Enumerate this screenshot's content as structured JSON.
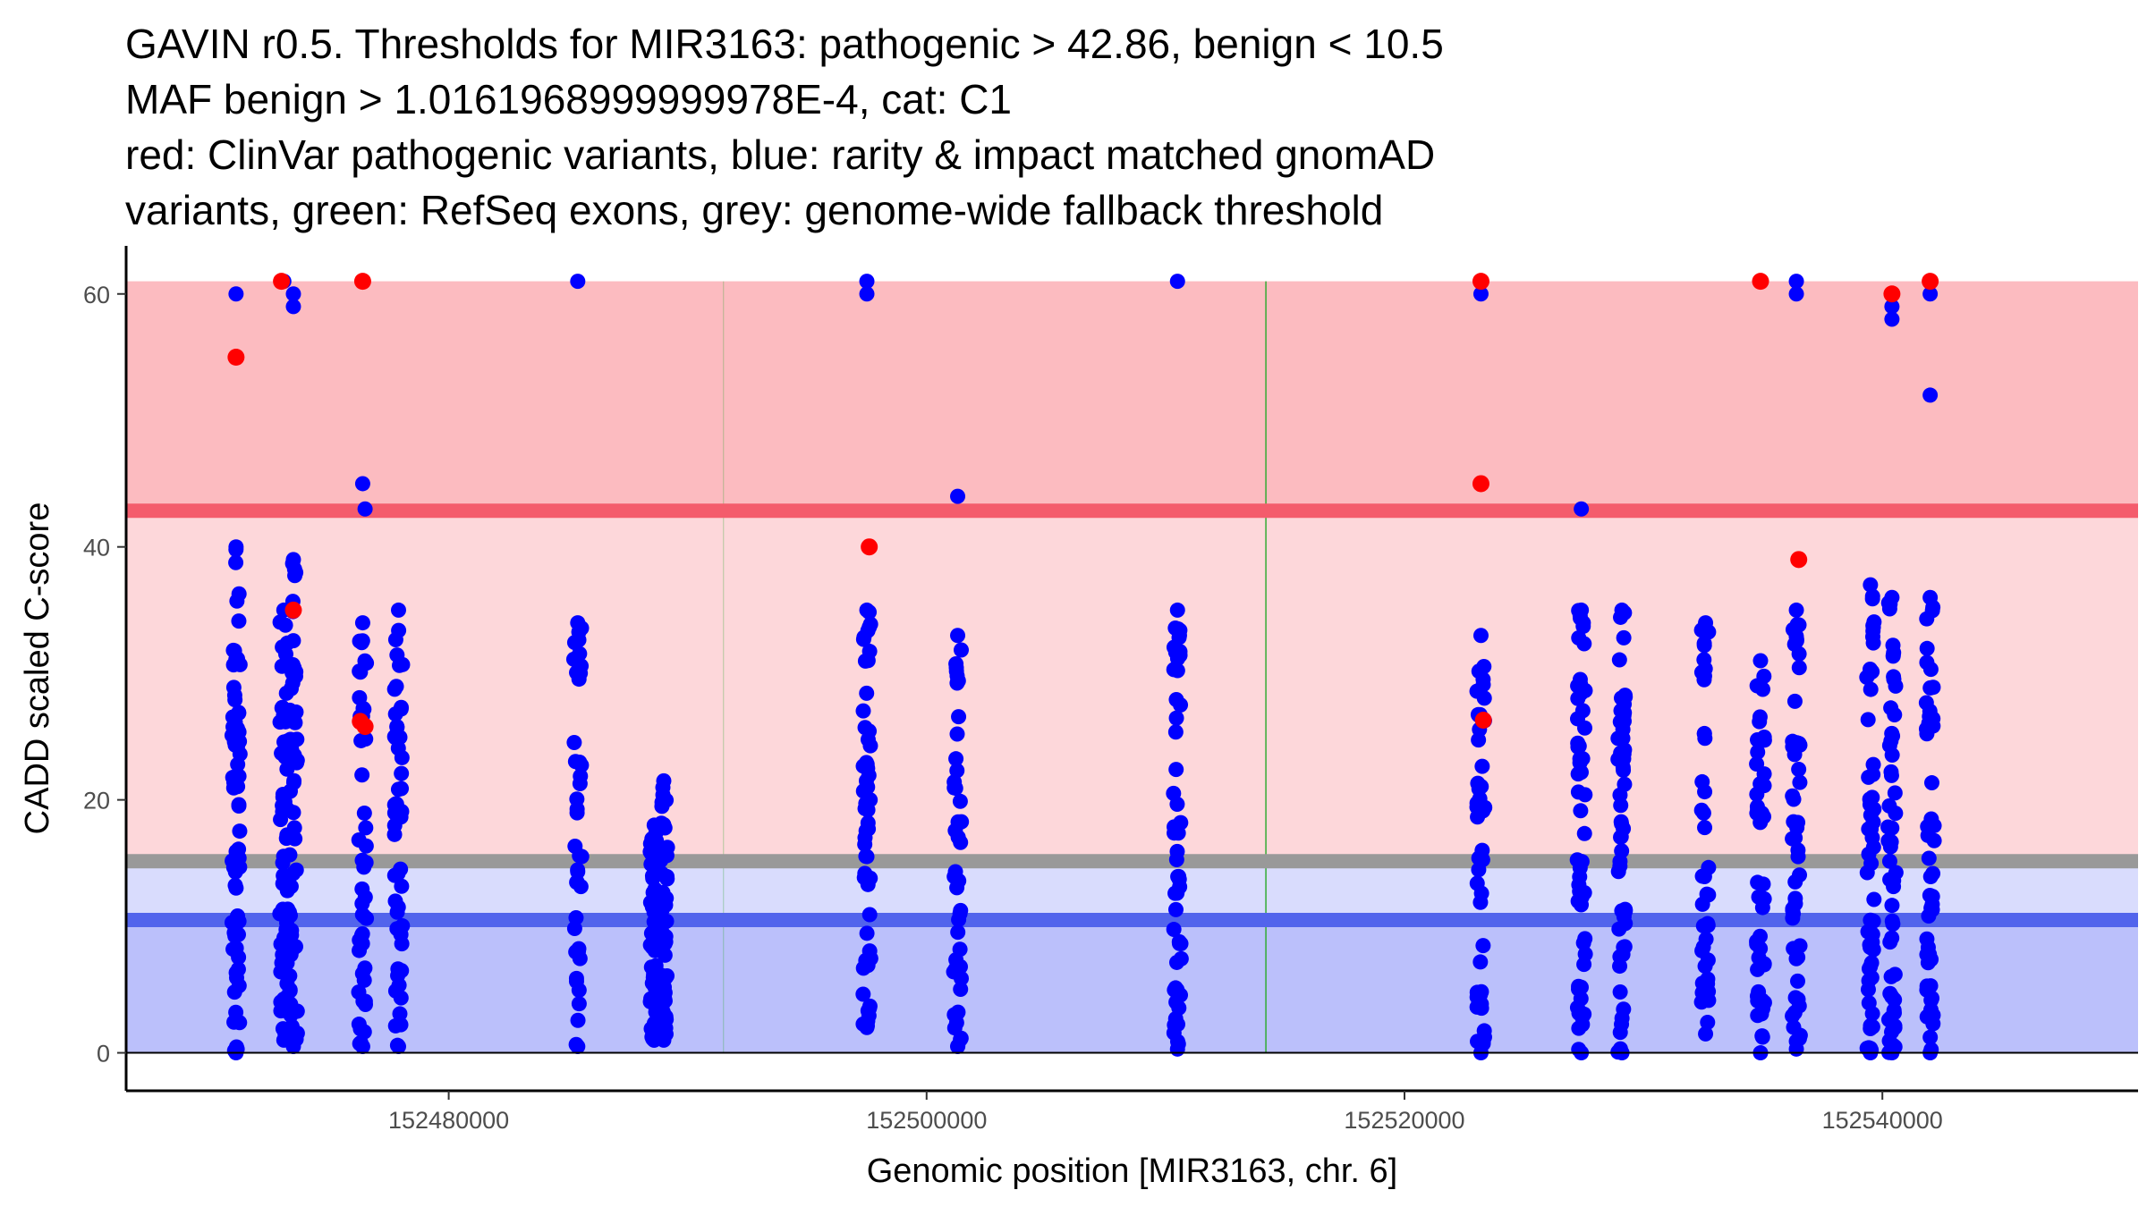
{
  "title_lines": [
    "GAVIN r0.5. Thresholds for MIR3163: pathogenic > 42.86, benign < 10.5",
    "MAF benign > 1.0161968999999978E-4, cat: C1",
    "red: ClinVar pathogenic variants, blue: rarity & impact matched gnomAD",
    "variants, green: RefSeq exons, grey: genome-wide fallback threshold"
  ],
  "chart_data": {
    "type": "scatter",
    "xlabel": "Genomic position [MIR3163, chr. 6]",
    "ylabel": "CADD scaled C-score",
    "xlim": [
      152466500,
      152550700
    ],
    "ylim": [
      -3.0,
      63.8
    ],
    "x_ticks": [
      152480000,
      152500000,
      152520000,
      152540000
    ],
    "y_ticks": [
      0,
      20,
      40,
      60
    ],
    "colors": {
      "pathogenic_band": "#fcbbc0",
      "intermediate_upper": "#fdd7da",
      "intermediate_lower": "#d9dcfd",
      "benign_band": "#bbc0fb",
      "pathogenic_line": "#f45c6c",
      "grey_line": "#999999",
      "benign_line": "#5264ec",
      "exon": "#2eaa2e",
      "clinvar": "#ff0000",
      "gnomad": "#0000ff"
    },
    "bands": [
      {
        "name": "pathogenic",
        "from": 42.86,
        "to": 61
      },
      {
        "name": "intermediate-upper",
        "from": 15.15,
        "to": 42.86
      },
      {
        "name": "intermediate-lower",
        "from": 10.5,
        "to": 15.15
      },
      {
        "name": "benign",
        "from": 0,
        "to": 10.5
      }
    ],
    "threshold_lines": [
      {
        "name": "pathogenic",
        "value": 42.86
      },
      {
        "name": "genome-wide fallback",
        "value": 15.15
      },
      {
        "name": "benign",
        "value": 10.5
      }
    ],
    "exons": [
      152491500,
      152514200
    ],
    "gnomad_columns": [
      {
        "x": 152471100,
        "ymin": 0,
        "ymax": 40,
        "n": 70
      },
      {
        "x": 152473100,
        "ymin": 1,
        "ymax": 35,
        "n": 60
      },
      {
        "x": 152473500,
        "ymin": 0.5,
        "ymax": 39,
        "n": 55
      },
      {
        "x": 152476400,
        "ymin": 0.5,
        "ymax": 34,
        "n": 45
      },
      {
        "x": 152477900,
        "ymin": 0.5,
        "ymax": 35,
        "n": 50
      },
      {
        "x": 152485400,
        "ymin": 0.5,
        "ymax": 34,
        "n": 40
      },
      {
        "x": 152488600,
        "ymin": 1,
        "ymax": 18,
        "n": 60
      },
      {
        "x": 152489000,
        "ymin": 1,
        "ymax": 21.5,
        "n": 60
      },
      {
        "x": 152497500,
        "ymin": 2,
        "ymax": 35,
        "n": 55
      },
      {
        "x": 152501300,
        "ymin": 0.5,
        "ymax": 33,
        "n": 45
      },
      {
        "x": 152510500,
        "ymin": 0.3,
        "ymax": 35,
        "n": 50
      },
      {
        "x": 152523200,
        "ymin": 0,
        "ymax": 33,
        "n": 45
      },
      {
        "x": 152527400,
        "ymin": 0,
        "ymax": 35,
        "n": 55
      },
      {
        "x": 152529100,
        "ymin": 0,
        "ymax": 35,
        "n": 55
      },
      {
        "x": 152532600,
        "ymin": 1.5,
        "ymax": 34,
        "n": 40
      },
      {
        "x": 152534900,
        "ymin": 0,
        "ymax": 31,
        "n": 45
      },
      {
        "x": 152536400,
        "ymin": 0.3,
        "ymax": 35,
        "n": 50
      },
      {
        "x": 152539500,
        "ymin": 0,
        "ymax": 37,
        "n": 55
      },
      {
        "x": 152540400,
        "ymin": 0,
        "ymax": 36,
        "n": 55
      },
      {
        "x": 152542000,
        "ymin": 0,
        "ymax": 36,
        "n": 50
      }
    ],
    "gnomad_points": [
      {
        "x": 152471100,
        "y": 60
      },
      {
        "x": 152473100,
        "y": 61
      },
      {
        "x": 152473500,
        "y": 60
      },
      {
        "x": 152473500,
        "y": 59
      },
      {
        "x": 152476400,
        "y": 45
      },
      {
        "x": 152476500,
        "y": 43
      },
      {
        "x": 152485400,
        "y": 61
      },
      {
        "x": 152497500,
        "y": 61
      },
      {
        "x": 152497500,
        "y": 60
      },
      {
        "x": 152501300,
        "y": 44
      },
      {
        "x": 152510500,
        "y": 61
      },
      {
        "x": 152523200,
        "y": 60
      },
      {
        "x": 152527400,
        "y": 43
      },
      {
        "x": 152536400,
        "y": 61
      },
      {
        "x": 152536400,
        "y": 60
      },
      {
        "x": 152540400,
        "y": 59
      },
      {
        "x": 152540400,
        "y": 58
      },
      {
        "x": 152542000,
        "y": 60
      },
      {
        "x": 152542000,
        "y": 52
      }
    ],
    "clinvar_points": [
      {
        "x": 152471100,
        "y": 55
      },
      {
        "x": 152473000,
        "y": 61
      },
      {
        "x": 152476400,
        "y": 61
      },
      {
        "x": 152473500,
        "y": 35
      },
      {
        "x": 152476300,
        "y": 26.2
      },
      {
        "x": 152476500,
        "y": 25.8
      },
      {
        "x": 152497600,
        "y": 40
      },
      {
        "x": 152523200,
        "y": 61
      },
      {
        "x": 152523200,
        "y": 45
      },
      {
        "x": 152523300,
        "y": 26.3
      },
      {
        "x": 152534900,
        "y": 61
      },
      {
        "x": 152536500,
        "y": 39
      },
      {
        "x": 152540400,
        "y": 60
      },
      {
        "x": 152542000,
        "y": 61
      }
    ]
  }
}
